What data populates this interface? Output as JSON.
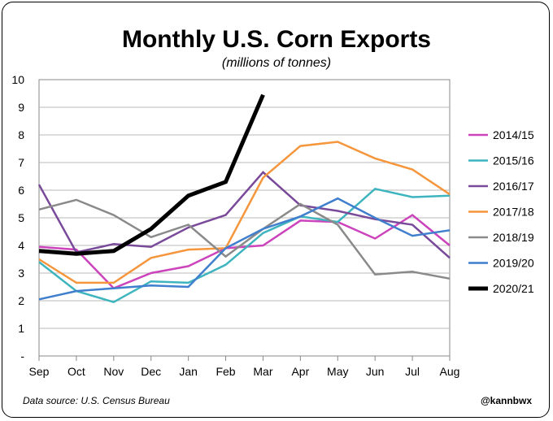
{
  "chart_data": {
    "type": "line",
    "title": "Monthly U.S. Corn Exports",
    "subtitle": "(millions of tonnes)",
    "categories": [
      "Sep",
      "Oct",
      "Nov",
      "Dec",
      "Jan",
      "Feb",
      "Mar",
      "Apr",
      "May",
      "Jun",
      "Jul",
      "Aug"
    ],
    "ylim": [
      0,
      10
    ],
    "yticks": [
      "-",
      "1",
      "2",
      "3",
      "4",
      "5",
      "6",
      "7",
      "8",
      "9",
      "10"
    ],
    "grid": true,
    "legend_position": "right",
    "series": [
      {
        "name": "2014/15",
        "color": "#cc44bb",
        "width": 2.5,
        "values": [
          3.95,
          3.85,
          2.45,
          3.0,
          3.25,
          3.9,
          4.0,
          4.9,
          4.85,
          4.25,
          5.1,
          4.0
        ]
      },
      {
        "name": "2015/16",
        "color": "#3eb4bf",
        "width": 2.5,
        "values": [
          3.4,
          2.35,
          1.95,
          2.7,
          2.65,
          3.3,
          4.45,
          5.05,
          4.85,
          6.05,
          5.75,
          5.8
        ]
      },
      {
        "name": "2016/17",
        "color": "#7a4a9a",
        "width": 2.5,
        "values": [
          6.2,
          3.75,
          4.05,
          3.95,
          4.65,
          5.1,
          6.65,
          5.45,
          5.25,
          4.95,
          4.75,
          3.55
        ]
      },
      {
        "name": "2017/18",
        "color": "#f5963c",
        "width": 2.5,
        "values": [
          3.5,
          2.65,
          2.65,
          3.55,
          3.85,
          3.9,
          6.45,
          7.6,
          7.75,
          7.15,
          6.75,
          5.85
        ]
      },
      {
        "name": "2018/19",
        "color": "#8a8a8a",
        "width": 2.5,
        "values": [
          5.3,
          5.65,
          5.1,
          4.3,
          4.75,
          3.6,
          4.6,
          5.5,
          4.75,
          2.95,
          3.05,
          2.8
        ]
      },
      {
        "name": "2019/20",
        "color": "#3f7fce",
        "width": 2.5,
        "values": [
          2.05,
          2.35,
          2.45,
          2.55,
          2.5,
          3.9,
          4.6,
          5.05,
          5.7,
          5.0,
          4.35,
          4.55
        ]
      },
      {
        "name": "2020/21",
        "color": "#000000",
        "width": 5,
        "values": [
          3.8,
          3.7,
          3.8,
          4.6,
          5.8,
          6.3,
          9.45,
          null,
          null,
          null,
          null,
          null
        ]
      }
    ],
    "footer_left": "Data source: U.S. Census Bureau",
    "footer_right": "@kannbwx"
  }
}
